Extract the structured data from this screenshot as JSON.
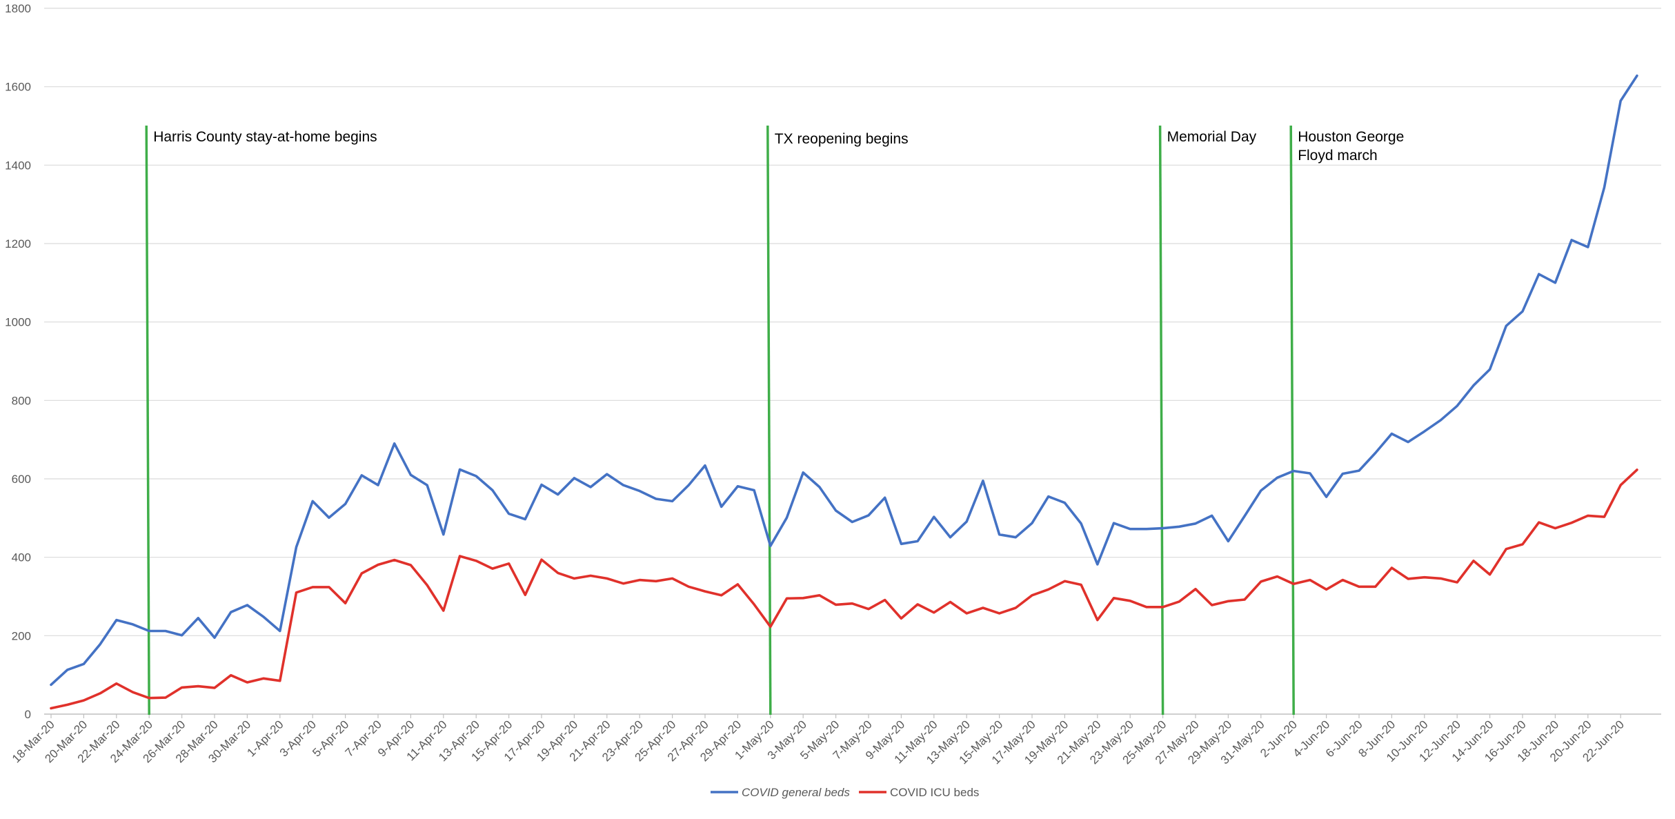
{
  "chart_data": {
    "type": "line",
    "title": "",
    "xlabel": "",
    "ylabel": "",
    "ylim": [
      0,
      1800
    ],
    "yticks": [
      0,
      200,
      400,
      600,
      800,
      1000,
      1200,
      1400,
      1600,
      1800
    ],
    "grid": true,
    "legend_position": "bottom",
    "x": [
      "18-Mar-20",
      "19-Mar-20",
      "20-Mar-20",
      "21-Mar-20",
      "22-Mar-20",
      "23-Mar-20",
      "24-Mar-20",
      "25-Mar-20",
      "26-Mar-20",
      "27-Mar-20",
      "28-Mar-20",
      "29-Mar-20",
      "30-Mar-20",
      "31-Mar-20",
      "1-Apr-20",
      "2-Apr-20",
      "3-Apr-20",
      "4-Apr-20",
      "5-Apr-20",
      "6-Apr-20",
      "7-Apr-20",
      "8-Apr-20",
      "9-Apr-20",
      "10-Apr-20",
      "11-Apr-20",
      "12-Apr-20",
      "13-Apr-20",
      "14-Apr-20",
      "15-Apr-20",
      "16-Apr-20",
      "17-Apr-20",
      "18-Apr-20",
      "19-Apr-20",
      "20-Apr-20",
      "21-Apr-20",
      "22-Apr-20",
      "23-Apr-20",
      "24-Apr-20",
      "25-Apr-20",
      "26-Apr-20",
      "27-Apr-20",
      "28-Apr-20",
      "29-Apr-20",
      "30-Apr-20",
      "1-May-20",
      "2-May-20",
      "3-May-20",
      "4-May-20",
      "5-May-20",
      "6-May-20",
      "7-May-20",
      "8-May-20",
      "9-May-20",
      "10-May-20",
      "11-May-20",
      "12-May-20",
      "13-May-20",
      "14-May-20",
      "15-May-20",
      "16-May-20",
      "17-May-20",
      "18-May-20",
      "19-May-20",
      "20-May-20",
      "21-May-20",
      "22-May-20",
      "23-May-20",
      "24-May-20",
      "25-May-20",
      "26-May-20",
      "27-May-20",
      "28-May-20",
      "29-May-20",
      "30-May-20",
      "31-May-20",
      "1-Jun-20",
      "2-Jun-20",
      "3-Jun-20",
      "4-Jun-20",
      "5-Jun-20",
      "6-Jun-20",
      "7-Jun-20",
      "8-Jun-20",
      "9-Jun-20",
      "10-Jun-20",
      "11-Jun-20",
      "12-Jun-20",
      "13-Jun-20",
      "14-Jun-20",
      "15-Jun-20",
      "16-Jun-20",
      "17-Jun-20",
      "18-Jun-20",
      "19-Jun-20",
      "20-Jun-20",
      "21-Jun-20",
      "22-Jun-20",
      "23-Jun-20"
    ],
    "tick_labels": [
      "18-Mar-20",
      "20-Mar-20",
      "22-Mar-20",
      "24-Mar-20",
      "26-Mar-20",
      "28-Mar-20",
      "30-Mar-20",
      "1-Apr-20",
      "3-Apr-20",
      "5-Apr-20",
      "7-Apr-20",
      "9-Apr-20",
      "11-Apr-20",
      "13-Apr-20",
      "15-Apr-20",
      "17-Apr-20",
      "19-Apr-20",
      "21-Apr-20",
      "23-Apr-20",
      "25-Apr-20",
      "27-Apr-20",
      "29-Apr-20",
      "1-May-20",
      "3-May-20",
      "5-May-20",
      "7-May-20",
      "9-May-20",
      "11-May-20",
      "13-May-20",
      "15-May-20",
      "17-May-20",
      "19-May-20",
      "21-May-20",
      "23-May-20",
      "25-May-20",
      "27-May-20",
      "29-May-20",
      "31-May-20",
      "2-Jun-20",
      "4-Jun-20",
      "6-Jun-20",
      "8-Jun-20",
      "10-Jun-20",
      "12-Jun-20",
      "14-Jun-20",
      "16-Jun-20",
      "18-Jun-20",
      "20-Jun-20",
      "22-Jun-20"
    ],
    "series": [
      {
        "name": "COVID general beds",
        "color": "#4472c4",
        "values": [
          75,
          113,
          128,
          178,
          240,
          229,
          212,
          212,
          201,
          245,
          195,
          260,
          278,
          248,
          212,
          426,
          543,
          501,
          536,
          609,
          584,
          690,
          610,
          584,
          458,
          624,
          607,
          571,
          511,
          497,
          585,
          560,
          602,
          579,
          612,
          584,
          569,
          549,
          543,
          584,
          634,
          529,
          581,
          571,
          429,
          501,
          616,
          579,
          519,
          490,
          507,
          552,
          434,
          441,
          503,
          451,
          491,
          595,
          458,
          451,
          487,
          555,
          539,
          486,
          382,
          487,
          472,
          472,
          474,
          478,
          486,
          506,
          441,
          505,
          570,
          603,
          620,
          614,
          554,
          613,
          621,
          666,
          715,
          694,
          721,
          750,
          786,
          838,
          879,
          990,
          1027,
          1122,
          1100,
          1209,
          1191,
          1343,
          1564,
          1628
        ]
      },
      {
        "name": "COVID ICU beds",
        "color": "#e0312b",
        "values": [
          15,
          24,
          35,
          53,
          78,
          56,
          41,
          42,
          68,
          71,
          67,
          99,
          81,
          91,
          85,
          310,
          324,
          324,
          283,
          359,
          381,
          393,
          380,
          329,
          264,
          403,
          391,
          371,
          384,
          304,
          394,
          360,
          346,
          353,
          346,
          333,
          342,
          339,
          346,
          325,
          313,
          303,
          331,
          280,
          223,
          295,
          296,
          303,
          279,
          282,
          268,
          291,
          244,
          280,
          259,
          286,
          257,
          271,
          257,
          271,
          303,
          318,
          339,
          330,
          240,
          296,
          289,
          273,
          273,
          287,
          319,
          278,
          288,
          292,
          338,
          351,
          332,
          342,
          318,
          342,
          325,
          325,
          373,
          345,
          349,
          346,
          336,
          391,
          356,
          421,
          433,
          489,
          474,
          488,
          506,
          503,
          584,
          623
        ]
      }
    ],
    "annotations": [
      {
        "label": "Harris County stay-at-home begins",
        "date": "24-Mar-20"
      },
      {
        "label": "TX reopening begins",
        "date": "1-May-20"
      },
      {
        "label": "Memorial Day",
        "date": "25-May-20"
      },
      {
        "label_lines": [
          "Houston George",
          "Floyd march"
        ],
        "date": "2-Jun-20"
      }
    ],
    "annotation_color": "#3fae49"
  }
}
